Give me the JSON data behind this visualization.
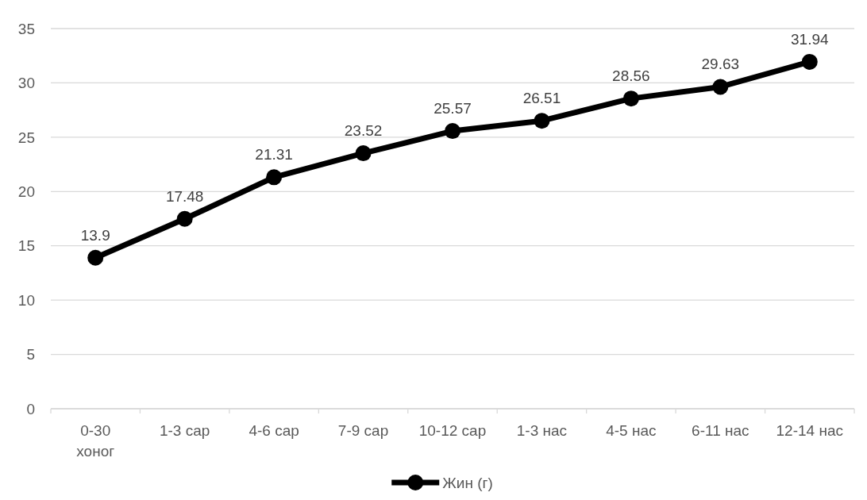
{
  "chart_data": {
    "type": "line",
    "categories": [
      "0-30 хоног",
      "1-3 сар",
      "4-6 сар",
      "7-9 сар",
      "10-12 сар",
      "1-3 нас",
      "4-5 нас",
      "6-11 нас",
      "12-14 нас"
    ],
    "series": [
      {
        "name": "Жин (г)",
        "color": "#000000",
        "values": [
          13.9,
          17.48,
          21.31,
          23.52,
          25.57,
          26.51,
          28.56,
          29.63,
          31.94
        ]
      }
    ],
    "ylim": [
      0,
      35
    ],
    "yticks": [
      0,
      5,
      10,
      15,
      20,
      25,
      30,
      35
    ],
    "grid": "y",
    "legend": "bottom",
    "marker": "circle",
    "line_style": "solid",
    "data_labels": true
  }
}
